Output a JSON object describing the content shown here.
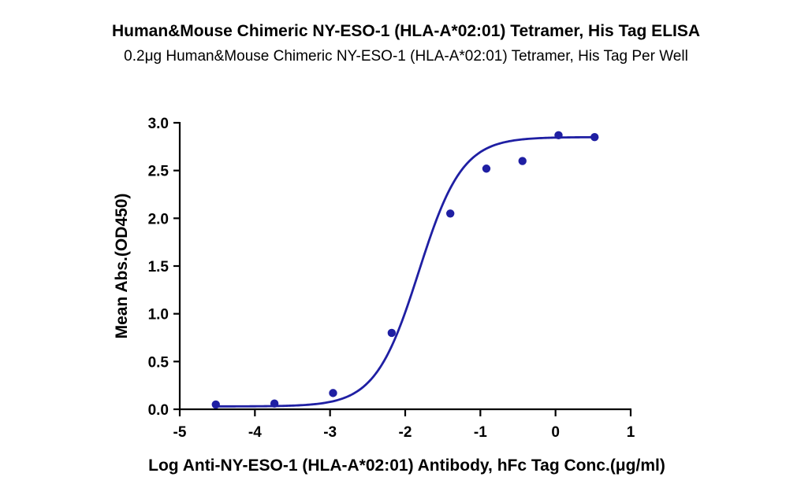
{
  "chart_data": {
    "type": "scatter",
    "title": "Human&Mouse Chimeric NY-ESO-1 (HLA-A*02:01) Tetramer, His Tag ELISA",
    "subtitle": "0.2μg Human&Mouse Chimeric NY-ESO-1 (HLA-A*02:01) Tetramer, His Tag Per Well",
    "xlabel": "Log Anti-NY-ESO-1 (HLA-A*02:01) Antibody, hFc Tag Conc.(μg/ml)",
    "ylabel": "Mean Abs.(OD450)",
    "xlim": [
      -5,
      1
    ],
    "ylim": [
      0,
      3.0
    ],
    "xticks": [
      "-5",
      "-4",
      "-3",
      "-2",
      "-1",
      "0",
      "1"
    ],
    "yticks": [
      "0.0",
      "0.5",
      "1.0",
      "1.5",
      "2.0",
      "2.5",
      "3.0"
    ],
    "grid": false,
    "color": "#1f1fa3",
    "points": [
      {
        "x": -4.52,
        "y": 0.05
      },
      {
        "x": -3.74,
        "y": 0.06
      },
      {
        "x": -2.96,
        "y": 0.17
      },
      {
        "x": -2.18,
        "y": 0.8
      },
      {
        "x": -1.4,
        "y": 2.05
      },
      {
        "x": -0.92,
        "y": 2.52
      },
      {
        "x": -0.44,
        "y": 2.6
      },
      {
        "x": 0.04,
        "y": 2.87
      },
      {
        "x": 0.52,
        "y": 2.85
      }
    ],
    "fit_curve": {
      "model": "4PL",
      "bottom": 0.03,
      "top": 2.85,
      "logEC50": -1.82,
      "hill": 1.5,
      "x_range": [
        -4.52,
        0.52
      ]
    }
  }
}
